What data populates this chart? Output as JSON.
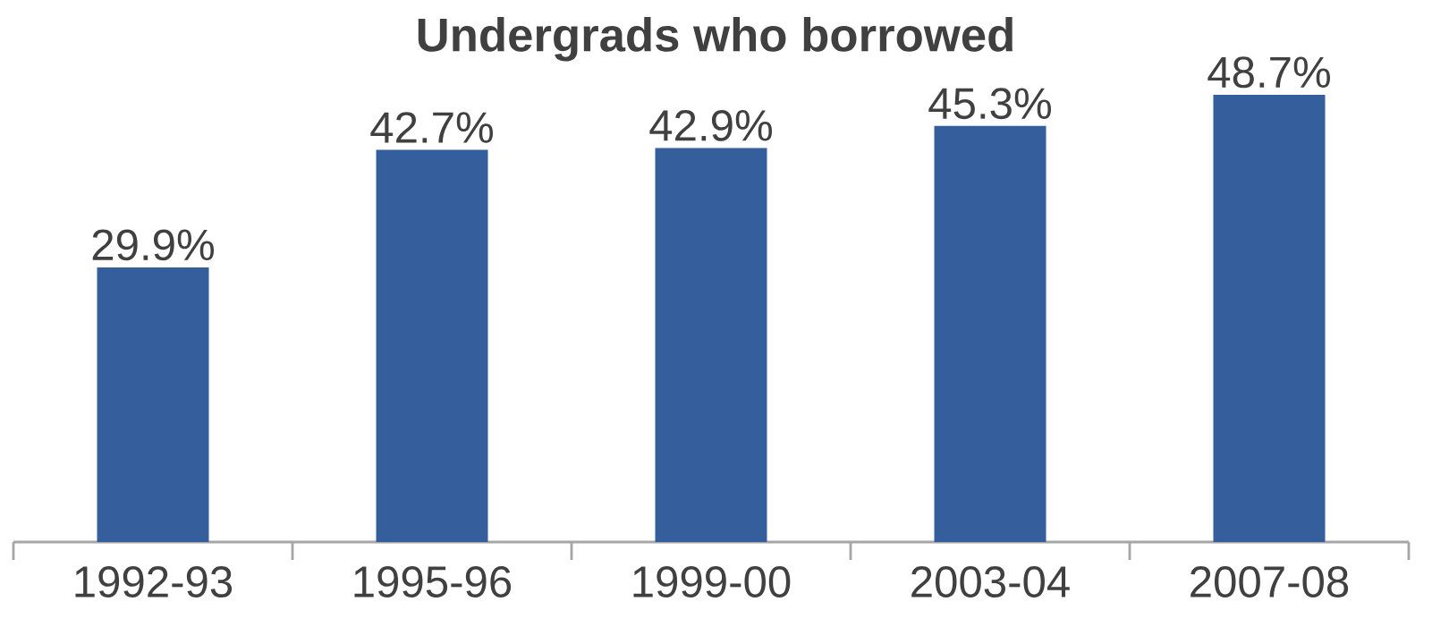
{
  "chart_data": {
    "type": "bar",
    "title": "Undergrads who borrowed",
    "categories": [
      "1992-93",
      "1995-96",
      "1999-00",
      "2003-04",
      "2007-08"
    ],
    "values": [
      29.9,
      42.7,
      42.9,
      45.3,
      48.7
    ],
    "value_labels": [
      "29.9%",
      "42.7%",
      "42.9%",
      "45.3%",
      "48.7%"
    ],
    "color": "#345e9c",
    "tick_labels": "x"
  }
}
